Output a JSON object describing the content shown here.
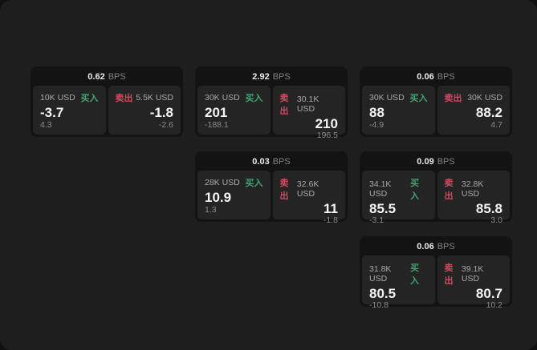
{
  "labels": {
    "bps_unit": "BPS",
    "buy": "买入",
    "sell": "卖出"
  },
  "colors": {
    "window_bg": "#1e1e1e",
    "card_bg": "#131313",
    "panel_bg": "#242424",
    "buy_green": "#3fa46f",
    "sell_red": "#d04b60"
  },
  "cards": [
    {
      "bps": "0.62",
      "buy": {
        "amount": "10K USD",
        "value": "-3.7",
        "delta": "4.3"
      },
      "sell": {
        "amount": "5.5K USD",
        "value": "-1.8",
        "delta": "-2.6"
      }
    },
    {
      "bps": "2.92",
      "buy": {
        "amount": "30K USD",
        "value": "201",
        "delta": "-188.1"
      },
      "sell": {
        "amount": "30.1K USD",
        "value": "210",
        "delta": "196.5"
      }
    },
    {
      "bps": "0.06",
      "buy": {
        "amount": "30K USD",
        "value": "88",
        "delta": "-4.9"
      },
      "sell": {
        "amount": "30K USD",
        "value": "88.2",
        "delta": "4.7"
      }
    },
    {
      "bps": "0.03",
      "buy": {
        "amount": "28K USD",
        "value": "10.9",
        "delta": "1.3"
      },
      "sell": {
        "amount": "32.6K USD",
        "value": "11",
        "delta": "-1.8"
      }
    },
    {
      "bps": "0.09",
      "buy": {
        "amount": "34.1K USD",
        "value": "85.5",
        "delta": "-3.1"
      },
      "sell": {
        "amount": "32.8K USD",
        "value": "85.8",
        "delta": "3.0"
      }
    },
    {
      "bps": "0.06",
      "buy": {
        "amount": "31.8K USD",
        "value": "80.5",
        "delta": "-10.8"
      },
      "sell": {
        "amount": "39.1K USD",
        "value": "80.7",
        "delta": "10.2"
      }
    }
  ]
}
